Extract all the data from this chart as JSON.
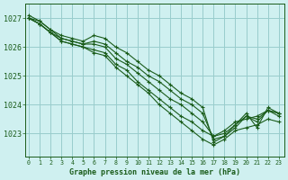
{
  "title": "Graphe pression niveau de la mer (hPa)",
  "bg_color": "#cff0f0",
  "grid_color": "#99cccc",
  "line_color": "#1a5c1a",
  "marker_color": "#1a5c1a",
  "tick_color": "#1a5c1a",
  "xlabel_color": "#1a5c1a",
  "x_ticks": [
    0,
    1,
    2,
    3,
    4,
    5,
    6,
    7,
    8,
    9,
    10,
    11,
    12,
    13,
    14,
    15,
    16,
    17,
    18,
    19,
    20,
    21,
    22,
    23
  ],
  "y_ticks": [
    1023,
    1024,
    1025,
    1026,
    1027
  ],
  "ylim": [
    1022.2,
    1027.5
  ],
  "xlim": [
    -0.3,
    23.5
  ],
  "series": [
    [
      1027.1,
      1026.9,
      1026.6,
      1026.4,
      1026.3,
      1026.2,
      1026.4,
      1026.3,
      1026.0,
      1025.8,
      1025.5,
      1025.2,
      1025.0,
      1024.7,
      1024.4,
      1024.2,
      1023.9,
      1022.7,
      1022.9,
      1023.3,
      1023.7,
      1023.2,
      1023.9,
      1023.7
    ],
    [
      1027.0,
      1026.9,
      1026.6,
      1026.3,
      1026.2,
      1026.1,
      1026.2,
      1026.1,
      1025.8,
      1025.5,
      1025.3,
      1025.0,
      1024.8,
      1024.5,
      1024.2,
      1024.0,
      1023.7,
      1022.8,
      1022.9,
      1023.2,
      1023.6,
      1023.4,
      1023.8,
      1023.6
    ],
    [
      1027.0,
      1026.8,
      1026.5,
      1026.3,
      1026.2,
      1026.1,
      1026.1,
      1026.0,
      1025.6,
      1025.4,
      1025.1,
      1024.8,
      1024.5,
      1024.2,
      1024.0,
      1023.7,
      1023.4,
      1022.9,
      1023.0,
      1023.3,
      1023.6,
      1023.5,
      1023.8,
      1023.7
    ],
    [
      1027.0,
      1026.8,
      1026.5,
      1026.2,
      1026.1,
      1026.0,
      1025.9,
      1025.8,
      1025.4,
      1025.2,
      1024.8,
      1024.5,
      1024.2,
      1023.9,
      1023.6,
      1023.4,
      1023.1,
      1022.9,
      1023.1,
      1023.4,
      1023.5,
      1023.6,
      1023.8,
      1023.7
    ],
    [
      1027.0,
      1026.8,
      1026.5,
      1026.2,
      1026.1,
      1026.0,
      1025.8,
      1025.7,
      1025.3,
      1025.0,
      1024.7,
      1024.4,
      1024.0,
      1023.7,
      1023.4,
      1023.1,
      1022.8,
      1022.6,
      1022.8,
      1023.1,
      1023.2,
      1023.3,
      1023.5,
      1023.4
    ]
  ]
}
